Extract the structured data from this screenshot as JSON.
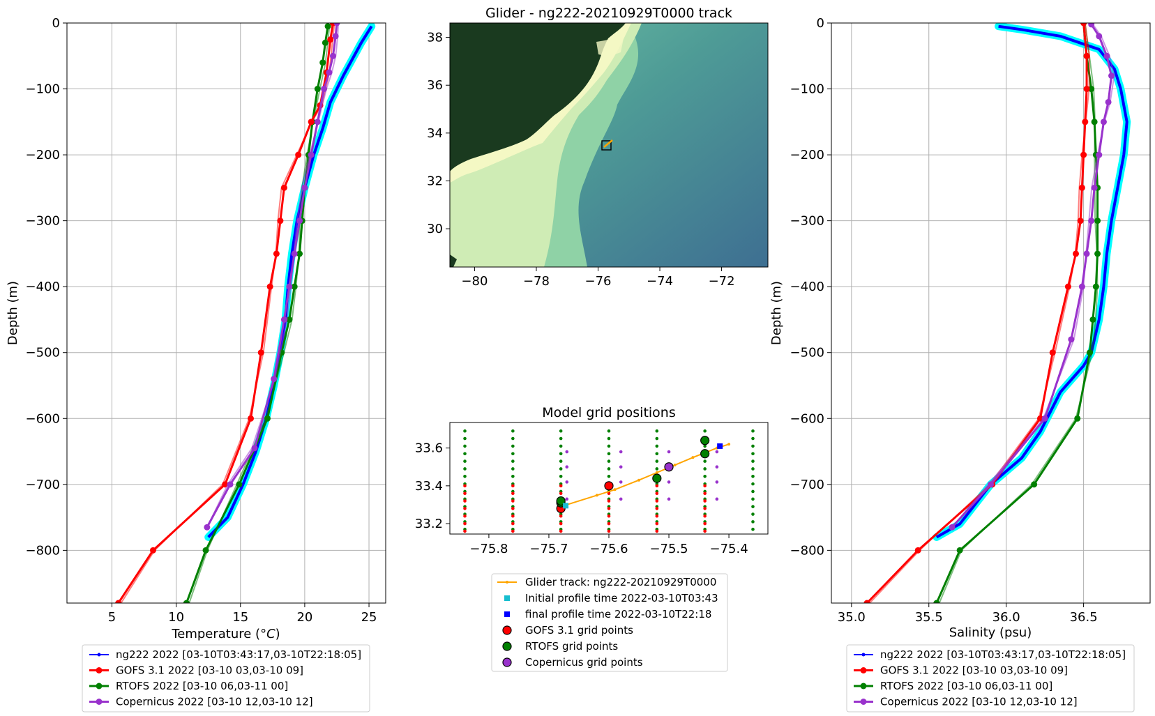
{
  "colors": {
    "glider": "#0000ff",
    "glider_band": "#00ffff",
    "gofs": "#ff0000",
    "rtofs": "#008000",
    "copernicus": "#9932cc",
    "track": "#ffa500",
    "initial": "#17becf",
    "final": "#0000ff"
  },
  "chart_data": [
    {
      "id": "temperature",
      "type": "line",
      "xlabel": "Temperature ($^oC$)",
      "ylabel": "Depth (m)",
      "xlim": [
        1.5,
        26.3
      ],
      "ylim": [
        -880,
        0
      ],
      "xticks": [
        5,
        10,
        15,
        20,
        25
      ],
      "yticks": [
        0,
        -100,
        -200,
        -300,
        -400,
        -500,
        -600,
        -700,
        -800
      ],
      "grid": true,
      "legend_position": "below",
      "series": [
        {
          "name": "ng222 2022 [03-10T03:43:17,03-10T22:18:05]",
          "key": "glider",
          "x": [
            25.2,
            24.4,
            23.0,
            22.0,
            21.4,
            20.7,
            20.0,
            19.4,
            19.0,
            18.7,
            18.5,
            18.1,
            17.6,
            17.0,
            16.2,
            15.2,
            14.0,
            12.5
          ],
          "y": [
            -5,
            -30,
            -80,
            -120,
            -160,
            -200,
            -250,
            -300,
            -350,
            -400,
            -450,
            -500,
            -550,
            -600,
            -650,
            -700,
            -750,
            -780
          ]
        },
        {
          "name": "GOFS 3.1 2022 [03-10 03,03-10 09]",
          "key": "gofs",
          "x": [
            22.2,
            22.0,
            21.7,
            21.2,
            20.5,
            19.5,
            18.4,
            18.1,
            17.8,
            17.3,
            16.6,
            15.8,
            13.8,
            8.2,
            5.5
          ],
          "y": [
            0,
            -25,
            -75,
            -125,
            -150,
            -200,
            -250,
            -300,
            -350,
            -400,
            -500,
            -600,
            -700,
            -800,
            -880
          ]
        },
        {
          "name": "RTOFS 2022 [03-10 06,03-11 00]",
          "key": "rtofs",
          "x": [
            21.8,
            21.6,
            21.4,
            21.0,
            20.6,
            20.3,
            20.0,
            19.8,
            19.6,
            19.2,
            18.8,
            18.2,
            17.1,
            14.9,
            12.3,
            10.8
          ],
          "y": [
            -5,
            -30,
            -60,
            -100,
            -150,
            -200,
            -250,
            -300,
            -350,
            -400,
            -450,
            -500,
            -600,
            -700,
            -800,
            -880
          ]
        },
        {
          "name": "Copernicus 2022 [03-10 12,03-10 12]",
          "key": "copernicus",
          "x": [
            22.5,
            22.4,
            22.2,
            21.9,
            21.5,
            21.0,
            20.5,
            20.0,
            19.6,
            19.2,
            18.8,
            18.4,
            17.6,
            16.1,
            14.2,
            12.4
          ],
          "y": [
            0,
            -20,
            -50,
            -75,
            -100,
            -150,
            -200,
            -250,
            -300,
            -350,
            -400,
            -450,
            -540,
            -645,
            -700,
            -765
          ]
        }
      ]
    },
    {
      "id": "map",
      "type": "heatmap",
      "title": "Glider - ng222-20210929T0000 track",
      "xlim": [
        -80.8,
        -70.5
      ],
      "ylim": [
        28.4,
        38.6
      ],
      "xticks": [
        -80,
        -78,
        -76,
        -74,
        -72
      ],
      "yticks": [
        30,
        32,
        34,
        36,
        38
      ],
      "box": {
        "lon": [
          -75.8,
          -75.5
        ],
        "lat": [
          33.25,
          33.7
        ]
      },
      "track": {
        "lon": [
          -75.67,
          -75.4
        ],
        "lat": [
          33.3,
          33.62
        ]
      }
    },
    {
      "id": "grid",
      "type": "scatter",
      "title": "Model grid positions",
      "xlim": [
        -75.865,
        -75.335
      ],
      "ylim": [
        33.145,
        33.735
      ],
      "xticks": [
        -75.8,
        -75.7,
        -75.6,
        -75.5,
        -75.4
      ],
      "xtick_labels": [
        "−75.8",
        "−75.7",
        "−75.6",
        "−75.5",
        "−75.4"
      ],
      "yticks": [
        33.2,
        33.4,
        33.6
      ],
      "ytick_labels": [
        "33.2",
        "33.4",
        "33.6"
      ],
      "grid": false,
      "glider_track": {
        "name": "Glider track: ng222-20210929T0000",
        "x": [
          -75.67,
          -75.62,
          -75.59,
          -75.55,
          -75.52,
          -75.49,
          -75.46,
          -75.42,
          -75.4
        ],
        "y": [
          33.3,
          33.35,
          33.38,
          33.43,
          33.47,
          33.51,
          33.55,
          33.6,
          33.62
        ]
      },
      "initial_profile": {
        "name": "Initial profile time 2022-03-10T03:43",
        "x": -75.672,
        "y": 33.295
      },
      "final_profile": {
        "name": "final profile time 2022-03-10T22:18",
        "x": -75.415,
        "y": 33.61
      },
      "rtofs_grid": {
        "columns": [
          -75.84,
          -75.76,
          -75.68,
          -75.6,
          -75.52,
          -75.44,
          -75.36
        ],
        "y0": 33.17,
        "dy": 0.04,
        "n": 14
      },
      "gofs_grid": {
        "columns": [
          -75.84,
          -75.76,
          -75.68,
          -75.6,
          -75.52,
          -75.44
        ],
        "rows": [
          33.16,
          33.2,
          33.24,
          33.28,
          33.32,
          33.36,
          33.4
        ]
      },
      "copernicus_grid": {
        "columns": [
          -75.67,
          -75.58,
          -75.5,
          -75.42
        ],
        "rows": [
          33.33,
          33.42,
          33.5,
          33.58
        ]
      },
      "highlight_points": [
        {
          "series": "gofs",
          "x": -75.68,
          "y": 33.28
        },
        {
          "series": "gofs",
          "x": -75.6,
          "y": 33.4
        },
        {
          "series": "rtofs",
          "x": -75.68,
          "y": 33.31
        },
        {
          "series": "rtofs",
          "x": -75.68,
          "y": 33.32
        },
        {
          "series": "rtofs",
          "x": -75.52,
          "y": 33.44
        },
        {
          "series": "rtofs",
          "x": -75.44,
          "y": 33.57
        },
        {
          "series": "rtofs",
          "x": -75.44,
          "y": 33.64
        },
        {
          "series": "copernicus",
          "x": -75.5,
          "y": 33.5
        }
      ],
      "legend": [
        {
          "key": "track",
          "label": "Glider track: ng222-20210929T0000"
        },
        {
          "key": "initial",
          "label": "Initial profile time 2022-03-10T03:43"
        },
        {
          "key": "final",
          "label": "final profile time 2022-03-10T22:18"
        },
        {
          "key": "gofs",
          "label": "GOFS 3.1 grid points"
        },
        {
          "key": "rtofs",
          "label": "RTOFS grid points"
        },
        {
          "key": "copernicus",
          "label": "Copernicus grid points"
        }
      ]
    },
    {
      "id": "salinity",
      "type": "line",
      "xlabel": "Salinity (psu)",
      "ylabel": "Depth (m)",
      "xlim": [
        34.87,
        36.93
      ],
      "ylim": [
        -880,
        0
      ],
      "xticks": [
        35.0,
        35.5,
        36.0,
        36.5
      ],
      "xtick_labels": [
        "35.0",
        "35.5",
        "36.0",
        "36.5"
      ],
      "yticks": [
        0,
        -100,
        -200,
        -300,
        -400,
        -500,
        -600,
        -700,
        -800
      ],
      "grid": true,
      "legend_position": "below",
      "series": [
        {
          "name": "ng222 2022 [03-10T03:43:17,03-10T22:18:05]",
          "key": "glider",
          "x": [
            35.95,
            36.1,
            36.35,
            36.6,
            36.7,
            36.74,
            36.78,
            36.76,
            36.72,
            36.68,
            36.65,
            36.63,
            36.6,
            36.57,
            36.55,
            36.5,
            36.35,
            36.22,
            36.1,
            35.9,
            35.7,
            35.55
          ],
          "y": [
            -5,
            -10,
            -20,
            -40,
            -70,
            -100,
            -150,
            -200,
            -250,
            -300,
            -350,
            -400,
            -450,
            -480,
            -500,
            -520,
            -560,
            -620,
            -660,
            -700,
            -760,
            -780
          ]
        },
        {
          "name": "GOFS 3.1 2022 [03-10 03,03-10 09]",
          "key": "gofs",
          "x": [
            36.5,
            36.52,
            36.52,
            36.51,
            36.5,
            36.49,
            36.48,
            36.45,
            36.4,
            36.3,
            36.22,
            35.91,
            35.43,
            35.1
          ],
          "y": [
            0,
            -50,
            -100,
            -150,
            -200,
            -250,
            -300,
            -350,
            -400,
            -500,
            -600,
            -700,
            -800,
            -880
          ]
        },
        {
          "name": "RTOFS 2022 [03-10 06,03-11 00]",
          "key": "rtofs",
          "x": [
            36.5,
            36.52,
            36.55,
            36.57,
            36.58,
            36.59,
            36.59,
            36.59,
            36.58,
            36.56,
            36.54,
            36.46,
            36.18,
            35.7,
            35.55
          ],
          "y": [
            0,
            -50,
            -100,
            -150,
            -200,
            -250,
            -300,
            -350,
            -400,
            -450,
            -500,
            -600,
            -700,
            -800,
            -880
          ]
        },
        {
          "name": "Copernicus 2022 [03-10 12,03-10 12]",
          "key": "copernicus",
          "x": [
            36.55,
            36.6,
            36.65,
            36.68,
            36.66,
            36.63,
            36.6,
            36.57,
            36.55,
            36.52,
            36.49,
            36.42,
            36.25,
            35.9,
            35.65
          ],
          "y": [
            -2,
            -20,
            -50,
            -80,
            -120,
            -150,
            -200,
            -250,
            -300,
            -350,
            -400,
            -480,
            -600,
            -700,
            -765
          ]
        }
      ]
    }
  ]
}
